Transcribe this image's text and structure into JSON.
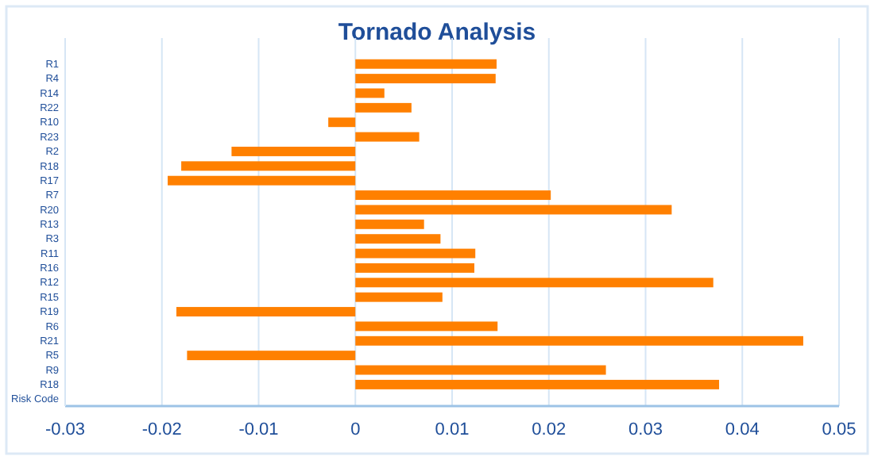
{
  "chart_data": {
    "type": "bar",
    "orientation": "horizontal",
    "title": "Tornado Analysis",
    "categories": [
      "R1",
      "R4",
      "R14",
      "R22",
      "R10",
      "R23",
      "R2",
      "R18",
      "R17",
      "R7",
      "R20",
      "R13",
      "R3",
      "R11",
      "R16",
      "R12",
      "R15",
      "R19",
      "R6",
      "R21",
      "R5",
      "R9",
      "R18",
      "Risk Code"
    ],
    "values": [
      0.0146,
      0.0145,
      0.003,
      0.0058,
      -0.0028,
      0.0066,
      -0.0128,
      -0.018,
      -0.0194,
      0.0202,
      0.0327,
      0.0071,
      0.0088,
      0.0124,
      0.0123,
      0.037,
      0.009,
      -0.0185,
      0.0147,
      0.0463,
      -0.0174,
      0.0259,
      0.0376,
      null
    ],
    "color": "#ff8000",
    "xlim": [
      -0.03,
      0.05
    ],
    "xticks": [
      -0.03,
      -0.02,
      -0.01,
      0,
      0.01,
      0.02,
      0.03,
      0.04,
      0.05
    ],
    "grid": "x"
  }
}
